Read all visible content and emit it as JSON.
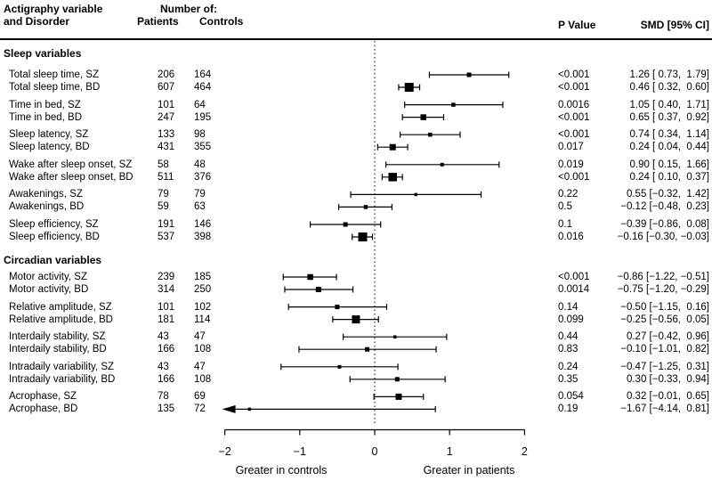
{
  "header": {
    "col1_line1": "Actigraphy variable",
    "col1_line2": "and Disorder",
    "number_of": "Number of:",
    "patients": "Patients",
    "controls": "Controls",
    "p_value": "P Value",
    "smd": "SMD [95% CI]"
  },
  "axis": {
    "tick_values": [
      -2,
      -1,
      0,
      1,
      2
    ],
    "tick_labels": [
      "−2",
      "−1",
      "0",
      "1",
      "2"
    ],
    "left_caption": "Greater in controls",
    "right_caption": "Greater in patients"
  },
  "colors": {
    "ink": "#000000",
    "background": "#ffffff"
  },
  "chart_data": {
    "type": "forest",
    "xlim": [
      -2,
      2
    ],
    "zero_line": 0,
    "sections": [
      {
        "title": "Sleep variables",
        "rows": [
          {
            "label": "Total sleep time, SZ",
            "patients": 206,
            "controls": 164,
            "p": "<0.001",
            "smd": 1.26,
            "ci": [
              0.73,
              1.79
            ],
            "smd_text": "1.26 [ 0.73,  1.79]",
            "marker": 5,
            "arrow_left": false
          },
          {
            "label": "Total sleep time, BD",
            "patients": 607,
            "controls": 464,
            "p": "<0.001",
            "smd": 0.46,
            "ci": [
              0.32,
              0.6
            ],
            "smd_text": "0.46 [ 0.32,  0.60]",
            "marker": 10,
            "arrow_left": false
          },
          {
            "label": "Time in bed, SZ",
            "patients": 101,
            "controls": 64,
            "p": "0.0016",
            "smd": 1.05,
            "ci": [
              0.4,
              1.71
            ],
            "smd_text": "1.05 [ 0.40,  1.71]",
            "marker": 4.5,
            "arrow_left": false
          },
          {
            "label": "Time in bed, BD",
            "patients": 247,
            "controls": 195,
            "p": "<0.001",
            "smd": 0.65,
            "ci": [
              0.37,
              0.92
            ],
            "smd_text": "0.65 [ 0.37,  0.92]",
            "marker": 6.5,
            "arrow_left": false
          },
          {
            "label": "Sleep latency, SZ",
            "patients": 133,
            "controls": 98,
            "p": "<0.001",
            "smd": 0.74,
            "ci": [
              0.34,
              1.14
            ],
            "smd_text": "0.74 [ 0.34,  1.14]",
            "marker": 4.5,
            "arrow_left": false
          },
          {
            "label": "Sleep latency, BD",
            "patients": 431,
            "controls": 355,
            "p": "0.017",
            "smd": 0.24,
            "ci": [
              0.04,
              0.44
            ],
            "smd_text": "0.24 [ 0.04,  0.44]",
            "marker": 7,
            "arrow_left": false
          },
          {
            "label": "Wake after sleep onset, SZ",
            "patients": 58,
            "controls": 48,
            "p": "0.019",
            "smd": 0.9,
            "ci": [
              0.15,
              1.66
            ],
            "smd_text": "0.90 [ 0.15,  1.66]",
            "marker": 4,
            "arrow_left": false
          },
          {
            "label": "Wake after sleep onset, BD",
            "patients": 511,
            "controls": 376,
            "p": "<0.001",
            "smd": 0.24,
            "ci": [
              0.1,
              0.37
            ],
            "smd_text": "0.24 [ 0.10,  0.37]",
            "marker": 9.5,
            "arrow_left": false
          },
          {
            "label": "Awakenings, SZ",
            "patients": 79,
            "controls": 79,
            "p": "0.22",
            "smd": 0.55,
            "ci": [
              -0.32,
              1.42
            ],
            "smd_text": "0.55 [−0.32,  1.42]",
            "marker": 3.5,
            "arrow_left": false
          },
          {
            "label": "Awakenings, BD",
            "patients": 59,
            "controls": 63,
            "p": "0.5",
            "smd": -0.12,
            "ci": [
              -0.48,
              0.23
            ],
            "smd_text": "−0.12 [−0.48,  0.23]",
            "marker": 4.5,
            "arrow_left": false
          },
          {
            "label": "Sleep efficiency, SZ",
            "patients": 191,
            "controls": 146,
            "p": "0.1",
            "smd": -0.39,
            "ci": [
              -0.86,
              0.08
            ],
            "smd_text": "−0.39 [−0.86,  0.08]",
            "marker": 5,
            "arrow_left": false
          },
          {
            "label": "Sleep efficiency, BD",
            "patients": 537,
            "controls": 398,
            "p": "0.016",
            "smd": -0.16,
            "ci": [
              -0.3,
              -0.03
            ],
            "smd_text": "−0.16 [−0.30, −0.03]",
            "marker": 10,
            "arrow_left": false
          }
        ]
      },
      {
        "title": "Circadian variables",
        "rows": [
          {
            "label": "Motor activity, SZ",
            "patients": 239,
            "controls": 185,
            "p": "<0.001",
            "smd": -0.86,
            "ci": [
              -1.22,
              -0.51
            ],
            "smd_text": "−0.86 [−1.22, −0.51]",
            "marker": 6.5,
            "arrow_left": false
          },
          {
            "label": "Motor activity, BD",
            "patients": 314,
            "controls": 250,
            "p": "0.0014",
            "smd": -0.75,
            "ci": [
              -1.2,
              -0.29
            ],
            "smd_text": "−0.75 [−1.20, −0.29]",
            "marker": 6,
            "arrow_left": false
          },
          {
            "label": "Relative amplitude, SZ",
            "patients": 101,
            "controls": 102,
            "p": "0.14",
            "smd": -0.5,
            "ci": [
              -1.15,
              0.16
            ],
            "smd_text": "−0.50 [−1.15,  0.16]",
            "marker": 5,
            "arrow_left": false
          },
          {
            "label": "Relative amplitude, BD",
            "patients": 181,
            "controls": 114,
            "p": "0.099",
            "smd": -0.25,
            "ci": [
              -0.56,
              0.05
            ],
            "smd_text": "−0.25 [−0.56,  0.05]",
            "marker": 9,
            "arrow_left": false
          },
          {
            "label": "Interdaily stability, SZ",
            "patients": 43,
            "controls": 47,
            "p": "0.44",
            "smd": 0.27,
            "ci": [
              -0.42,
              0.96
            ],
            "smd_text": "0.27 [−0.42,  0.96]",
            "marker": 3.5,
            "arrow_left": false
          },
          {
            "label": "Interdaily stability, BD",
            "patients": 166,
            "controls": 108,
            "p": "0.83",
            "smd": -0.1,
            "ci": [
              -1.01,
              0.82
            ],
            "smd_text": "−0.10 [−1.01,  0.82]",
            "marker": 5,
            "arrow_left": false
          },
          {
            "label": "Intradaily variability, SZ",
            "patients": 43,
            "controls": 47,
            "p": "0.24",
            "smd": -0.47,
            "ci": [
              -1.25,
              0.31
            ],
            "smd_text": "−0.47 [−1.25,  0.31]",
            "marker": 4,
            "arrow_left": false
          },
          {
            "label": "Intradaily variability, BD",
            "patients": 166,
            "controls": 108,
            "p": "0.35",
            "smd": 0.3,
            "ci": [
              -0.33,
              0.94
            ],
            "smd_text": "0.30 [−0.33,  0.94]",
            "marker": 5,
            "arrow_left": false
          },
          {
            "label": "Acrophase, SZ",
            "patients": 78,
            "controls": 69,
            "p": "0.054",
            "smd": 0.32,
            "ci": [
              -0.01,
              0.65
            ],
            "smd_text": "0.32 [−0.01,  0.65]",
            "marker": 7,
            "arrow_left": false
          },
          {
            "label": "Acrophase, BD",
            "patients": 135,
            "controls": 72,
            "p": "0.19",
            "smd": -1.67,
            "ci": [
              -4.14,
              0.81
            ],
            "smd_text": "−1.67 [−4.14,  0.81]",
            "marker": 3.5,
            "arrow_left": true
          }
        ]
      }
    ]
  }
}
